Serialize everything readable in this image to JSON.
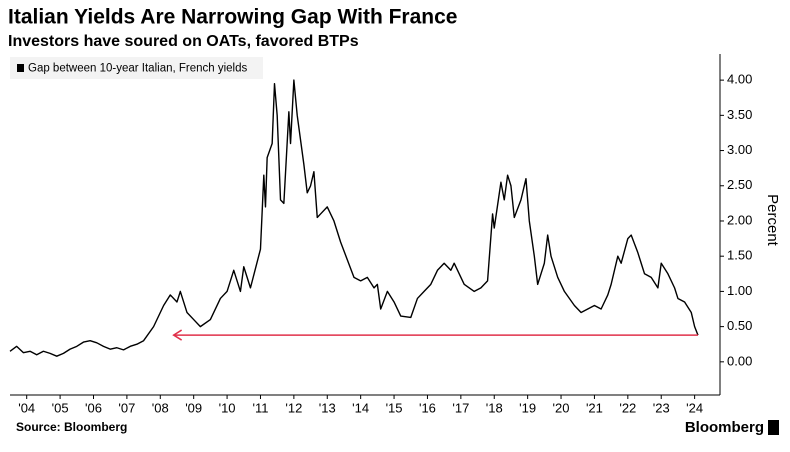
{
  "chart_data": {
    "type": "line",
    "title": "Italian Yields Are Narrowing Gap With France",
    "subtitle": "Investors have soured on OATs, favored BTPs",
    "y_axis_label": "Percent",
    "source": "Source: Bloomberg",
    "brand": "Bloomberg",
    "legend_position": "upper left",
    "grid": false,
    "xlim": [
      2004.0,
      2025.2
    ],
    "ylim": [
      -0.4,
      4.3
    ],
    "yticks": [
      {
        "value": 0,
        "label": "0.00"
      },
      {
        "value": 0.5,
        "label": "0.50"
      },
      {
        "value": 1,
        "label": "1.00"
      },
      {
        "value": 1.5,
        "label": "1.50"
      },
      {
        "value": 2,
        "label": "2.00"
      },
      {
        "value": 2.5,
        "label": "2.50"
      },
      {
        "value": 3,
        "label": "3.00"
      },
      {
        "value": 3.5,
        "label": "3.50"
      },
      {
        "value": 4,
        "label": "4.00"
      }
    ],
    "xticks": [
      {
        "value": 2004.5,
        "label": "'04"
      },
      {
        "value": 2005.5,
        "label": "'05"
      },
      {
        "value": 2006.5,
        "label": "'06"
      },
      {
        "value": 2007.5,
        "label": "'07"
      },
      {
        "value": 2008.5,
        "label": "'08"
      },
      {
        "value": 2009.5,
        "label": "'09"
      },
      {
        "value": 2010.5,
        "label": "'10"
      },
      {
        "value": 2011.5,
        "label": "'11"
      },
      {
        "value": 2012.5,
        "label": "'12"
      },
      {
        "value": 2013.5,
        "label": "'13"
      },
      {
        "value": 2014.5,
        "label": "'14"
      },
      {
        "value": 2015.5,
        "label": "'15"
      },
      {
        "value": 2016.5,
        "label": "'16"
      },
      {
        "value": 2017.5,
        "label": "'17"
      },
      {
        "value": 2018.5,
        "label": "'18"
      },
      {
        "value": 2019.5,
        "label": "'19"
      },
      {
        "value": 2020.5,
        "label": "'20"
      },
      {
        "value": 2021.5,
        "label": "'21"
      },
      {
        "value": 2022.5,
        "label": "'22"
      },
      {
        "value": 2023.5,
        "label": "'23"
      },
      {
        "value": 2024.5,
        "label": "'24"
      }
    ],
    "reference_arrow": {
      "y": 0.38,
      "x": [
        2008.9,
        2024.6
      ],
      "color": "#e0304a"
    },
    "x": [
      2004.0,
      2004.2,
      2004.4,
      2004.6,
      2004.8,
      2005.0,
      2005.2,
      2005.4,
      2005.6,
      2005.8,
      2006.0,
      2006.2,
      2006.4,
      2006.6,
      2006.8,
      2007.0,
      2007.2,
      2007.4,
      2007.6,
      2007.8,
      2008.0,
      2008.3,
      2008.6,
      2008.8,
      2009.0,
      2009.1,
      2009.3,
      2009.5,
      2009.7,
      2010.0,
      2010.3,
      2010.5,
      2010.7,
      2010.9,
      2011.0,
      2011.2,
      2011.5,
      2011.6,
      2011.65,
      2011.7,
      2011.85,
      2011.92,
      2012.0,
      2012.1,
      2012.2,
      2012.35,
      2012.4,
      2012.5,
      2012.6,
      2012.8,
      2012.9,
      2013.0,
      2013.1,
      2013.2,
      2013.3,
      2013.5,
      2013.7,
      2013.9,
      2014.1,
      2014.3,
      2014.5,
      2014.7,
      2014.9,
      2015.0,
      2015.1,
      2015.3,
      2015.5,
      2015.7,
      2016.0,
      2016.2,
      2016.4,
      2016.6,
      2016.8,
      2017.0,
      2017.2,
      2017.3,
      2017.6,
      2017.9,
      2018.1,
      2018.3,
      2018.45,
      2018.5,
      2018.7,
      2018.8,
      2018.9,
      2019.0,
      2019.1,
      2019.3,
      2019.45,
      2019.55,
      2019.7,
      2019.8,
      2019.9,
      2020.0,
      2020.1,
      2020.2,
      2020.4,
      2020.6,
      2020.9,
      2021.1,
      2021.3,
      2021.5,
      2021.7,
      2021.9,
      2022.0,
      2022.2,
      2022.3,
      2022.5,
      2022.6,
      2022.8,
      2022.9,
      2023.0,
      2023.2,
      2023.4,
      2023.5,
      2023.7,
      2023.9,
      2024.0,
      2024.2,
      2024.4,
      2024.5,
      2024.6
    ],
    "series": [
      {
        "name": "Gap between 10-year Italian, French yields",
        "color": "#000000",
        "values": [
          0.15,
          0.22,
          0.13,
          0.15,
          0.1,
          0.15,
          0.12,
          0.08,
          0.12,
          0.18,
          0.22,
          0.28,
          0.3,
          0.27,
          0.22,
          0.18,
          0.2,
          0.17,
          0.22,
          0.25,
          0.3,
          0.5,
          0.8,
          0.95,
          0.85,
          1.0,
          0.7,
          0.6,
          0.5,
          0.6,
          0.9,
          1.0,
          1.3,
          1.0,
          1.35,
          1.05,
          1.6,
          2.65,
          2.2,
          2.9,
          3.1,
          3.95,
          3.5,
          2.3,
          2.25,
          3.55,
          3.1,
          4.0,
          3.5,
          2.8,
          2.4,
          2.5,
          2.7,
          2.05,
          2.1,
          2.2,
          2.0,
          1.7,
          1.45,
          1.2,
          1.15,
          1.2,
          1.05,
          1.1,
          0.75,
          1.0,
          0.85,
          0.65,
          0.63,
          0.9,
          1.0,
          1.1,
          1.3,
          1.4,
          1.3,
          1.4,
          1.1,
          1.0,
          1.05,
          1.15,
          2.1,
          1.9,
          2.55,
          2.3,
          2.65,
          2.5,
          2.05,
          2.3,
          2.6,
          2.0,
          1.5,
          1.1,
          1.25,
          1.4,
          1.8,
          1.5,
          1.2,
          1.0,
          0.8,
          0.7,
          0.75,
          0.8,
          0.75,
          0.95,
          1.1,
          1.5,
          1.4,
          1.75,
          1.8,
          1.55,
          1.4,
          1.25,
          1.2,
          1.05,
          1.4,
          1.25,
          1.05,
          0.9,
          0.85,
          0.7,
          0.5,
          0.38
        ]
      }
    ]
  }
}
